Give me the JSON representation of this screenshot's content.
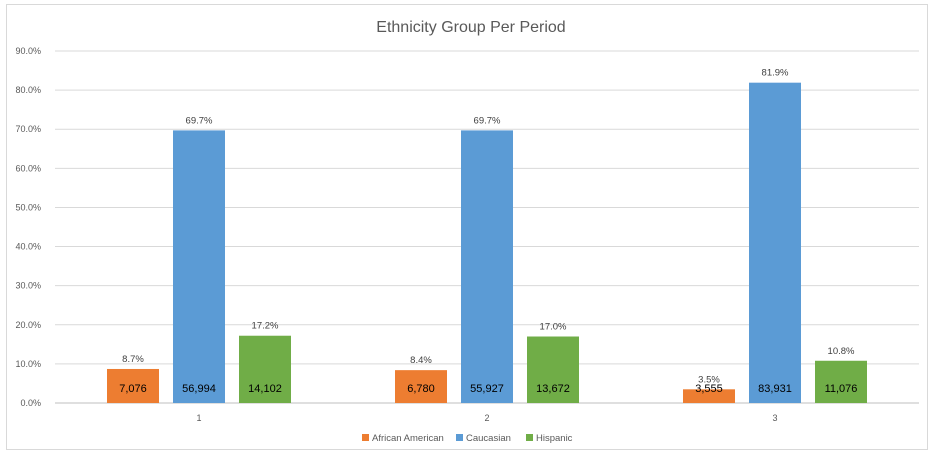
{
  "chart_data": {
    "type": "bar",
    "title": "Ethnicity Group Per Period",
    "categories": [
      "1",
      "2",
      "3"
    ],
    "ylim": [
      0,
      90
    ],
    "yticks": [
      "0.0%",
      "10.0%",
      "20.0%",
      "30.0%",
      "40.0%",
      "50.0%",
      "60.0%",
      "70.0%",
      "80.0%",
      "90.0%"
    ],
    "grid": true,
    "legend_position": "bottom",
    "series": [
      {
        "name": "African American",
        "color": "#ed7d31",
        "values": [
          8.7,
          8.4,
          3.5
        ],
        "percent_labels": [
          "8.7%",
          "8.4%",
          "3.5%"
        ],
        "count_labels": [
          "7,076",
          "6,780",
          "3,555"
        ]
      },
      {
        "name": "Caucasian",
        "color": "#5b9bd5",
        "values": [
          69.7,
          69.7,
          81.9
        ],
        "percent_labels": [
          "69.7%",
          "69.7%",
          "81.9%"
        ],
        "count_labels": [
          "56,994",
          "55,927",
          "83,931"
        ]
      },
      {
        "name": "Hispanic",
        "color": "#70ad47",
        "values": [
          17.2,
          17.0,
          10.8
        ],
        "percent_labels": [
          "17.2%",
          "17.0%",
          "10.8%"
        ],
        "count_labels": [
          "14,102",
          "13,672",
          "11,076"
        ]
      }
    ]
  }
}
